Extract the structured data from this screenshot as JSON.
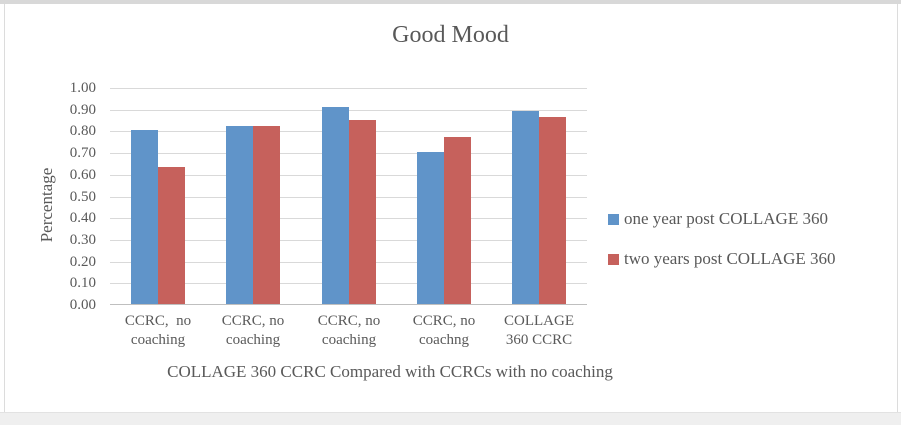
{
  "chart_data": {
    "type": "bar",
    "title": "Good Mood",
    "xlabel": "COLLAGE 360 CCRC Compared with CCRCs with no coaching",
    "ylabel": "Percentage",
    "categories": [
      "CCRC,  no\ncoaching",
      "CCRC, no\ncoaching",
      "CCRC, no\ncoaching",
      "CCRC, no\ncoachng",
      "COLLAGE\n360 CCRC"
    ],
    "series": [
      {
        "name": "one year post COLLAGE 360",
        "color": "#6094C9",
        "values": [
          0.8,
          0.82,
          0.91,
          0.7,
          0.89
        ]
      },
      {
        "name": "two years post COLLAGE 360",
        "color": "#C6615C",
        "values": [
          0.63,
          0.82,
          0.85,
          0.77,
          0.86
        ]
      }
    ],
    "ylim": [
      0,
      1.0
    ],
    "ytick_step": 0.1,
    "ytick_labels": [
      "1.00",
      "0.90",
      "0.80",
      "0.70",
      "0.60",
      "0.50",
      "0.40",
      "0.30",
      "0.20",
      "0.10",
      "0.00"
    ],
    "grid": "horizontal",
    "legend_position": "right",
    "colors": {
      "text": "#595959",
      "gridline": "#d9d9d9",
      "axis_line": "#bfbfbf"
    }
  }
}
